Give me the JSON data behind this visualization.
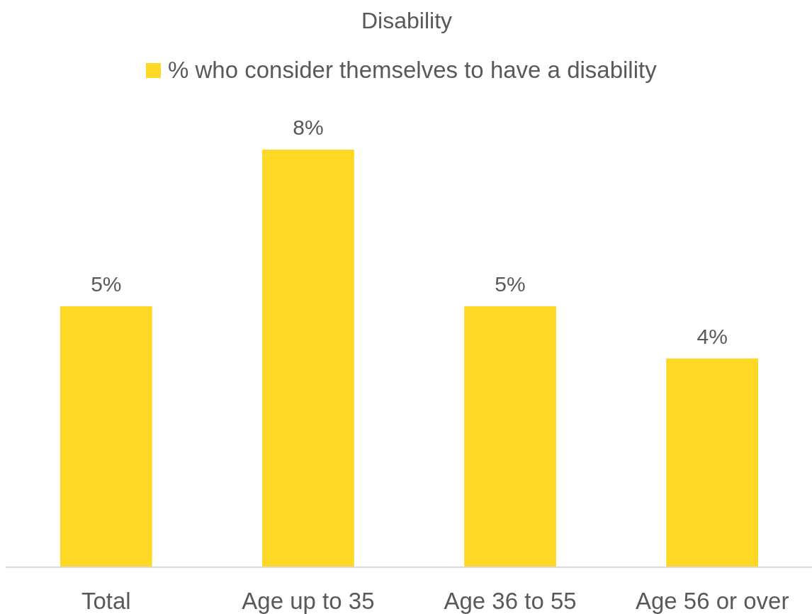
{
  "chart_data": {
    "type": "bar",
    "title": "Disability",
    "categories": [
      "Total",
      "Age up to 35",
      "Age 36 to 55",
      "Age 56 or over"
    ],
    "series": [
      {
        "name": "% who consider themselves to have a disability",
        "color": "#fdd925",
        "values": [
          5,
          8,
          5,
          4
        ],
        "value_labels": [
          "5%",
          "8%",
          "5%",
          "4%"
        ]
      }
    ],
    "legend": "top"
  }
}
